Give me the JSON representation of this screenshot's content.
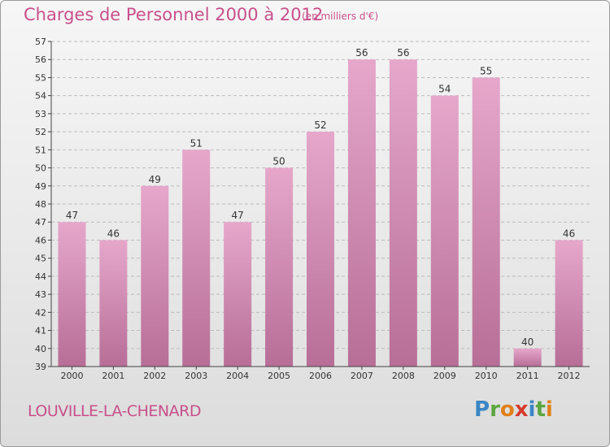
{
  "title": "Charges de Personnel 2000 à 2012",
  "subtitle": "(en milliers d'€)",
  "town": "LOUVILLE-LA-CHENARD",
  "logo": {
    "letters": [
      {
        "ch": "P",
        "color": "#3b86c6"
      },
      {
        "ch": "r",
        "color": "#5aa640"
      },
      {
        "ch": "o",
        "color": "#e0801a"
      },
      {
        "ch": "x",
        "color": "#d63a2f"
      },
      {
        "ch": "i",
        "color": "#3b86c6"
      },
      {
        "ch": "t",
        "color": "#5aa640"
      },
      {
        "ch": "i",
        "color": "#e0801a"
      }
    ]
  },
  "colors": {
    "bar_top": "#e6a7cb",
    "bar_bottom": "#b76e97",
    "accent_text": "#c8508a",
    "grid": "#bdbdbd"
  },
  "chart_data": {
    "type": "bar",
    "categories": [
      "2000",
      "2001",
      "2002",
      "2003",
      "2004",
      "2005",
      "2006",
      "2007",
      "2008",
      "2009",
      "2010",
      "2011",
      "2012"
    ],
    "values": [
      47,
      46,
      49,
      51,
      47,
      50,
      52,
      56,
      56,
      54,
      55,
      40,
      46
    ],
    "title": "Charges de Personnel 2000 à 2012",
    "xlabel": "",
    "ylabel": "",
    "ylim": [
      39,
      57
    ],
    "yticks": [
      39,
      40,
      41,
      42,
      43,
      44,
      45,
      46,
      47,
      48,
      49,
      50,
      51,
      52,
      53,
      54,
      55,
      56,
      57
    ],
    "grid": true,
    "legend": "none"
  }
}
